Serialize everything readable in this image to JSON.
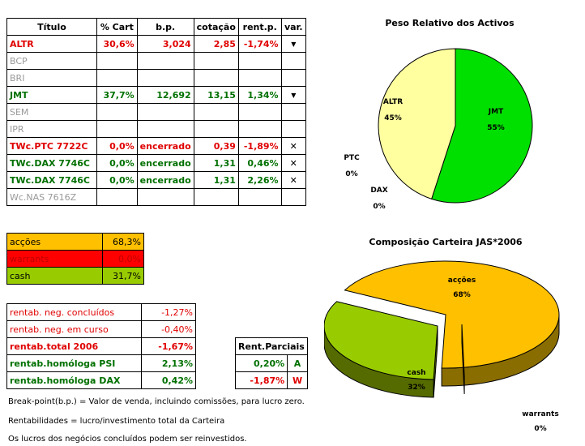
{
  "main_table": {
    "headers": [
      "Título",
      "% Cart",
      "b.p.",
      "cotação",
      "rent.p.",
      "var."
    ],
    "rows": [
      {
        "title": "ALTR",
        "cart": "30,6%",
        "bp": "3,024",
        "cot": "2,85",
        "rent": "-1,74%",
        "var": "▼",
        "color": "red",
        "var_kind": "arrow"
      },
      {
        "title": "BCP",
        "cart": "",
        "bp": "",
        "cot": "",
        "rent": "",
        "var": "",
        "color": "gray",
        "var_kind": "none"
      },
      {
        "title": "BRI",
        "cart": "",
        "bp": "",
        "cot": "",
        "rent": "",
        "var": "",
        "color": "gray",
        "var_kind": "none"
      },
      {
        "title": "JMT",
        "cart": "37,7%",
        "bp": "12,692",
        "cot": "13,15",
        "rent": "1,34%",
        "var": "▼",
        "color": "green",
        "var_kind": "arrow"
      },
      {
        "title": "SEM",
        "cart": "",
        "bp": "",
        "cot": "",
        "rent": "",
        "var": "",
        "color": "gray",
        "var_kind": "none"
      },
      {
        "title": "IPR",
        "cart": "",
        "bp": "",
        "cot": "",
        "rent": "",
        "var": "",
        "color": "gray",
        "var_kind": "none"
      },
      {
        "title": "TWc.PTC 7722C",
        "cart": "0,0%",
        "bp": "encerrado",
        "cot": "0,39",
        "rent": "-1,89%",
        "var": "✕",
        "color": "red",
        "var_kind": "x"
      },
      {
        "title": "TWc.DAX 7746C",
        "cart": "0,0%",
        "bp": "encerrado",
        "cot": "1,31",
        "rent": "0,46%",
        "var": "✕",
        "color": "green",
        "var_kind": "x"
      },
      {
        "title": "TWc.DAX 7746C",
        "cart": "0,0%",
        "bp": "encerrado",
        "cot": "1,31",
        "rent": "2,26%",
        "var": "✕",
        "color": "green",
        "var_kind": "x"
      },
      {
        "title": "Wc.NAS 7616Z",
        "cart": "",
        "bp": "",
        "cot": "",
        "rent": "",
        "var": "",
        "color": "gray",
        "var_kind": "none"
      }
    ]
  },
  "composition_table": {
    "rows": [
      {
        "label": "acções",
        "value": "68,3%",
        "bg": "#ffc000",
        "fg": "#000000"
      },
      {
        "label": "warrants",
        "value": "0,0%",
        "bg": "#ff0000",
        "fg": "#c00000"
      },
      {
        "label": "cash",
        "value": "31,7%",
        "bg": "#99cc00",
        "fg": "#000000"
      }
    ]
  },
  "rentab_table": {
    "rows": [
      {
        "label": "rentab. neg. concluídos",
        "value": "-1,27%",
        "color": "red",
        "bold": false
      },
      {
        "label": "rentab. neg. em curso",
        "value": "-0,40%",
        "color": "red",
        "bold": false
      },
      {
        "label": "rentab.total 2006",
        "value": "-1,67%",
        "color": "red",
        "bold": true
      },
      {
        "label": "rentab.homóloga PSI",
        "value": "2,13%",
        "color": "green",
        "bold": true
      },
      {
        "label": "rentab.homóloga DAX",
        "value": "0,42%",
        "color": "green",
        "bold": true
      }
    ]
  },
  "partial_table": {
    "header": "Rent.Parciais",
    "rows": [
      {
        "value": "0,20%",
        "letter": "A",
        "color": "green"
      },
      {
        "value": "-1,87%",
        "letter": "W",
        "color": "red"
      }
    ]
  },
  "notes": [
    "Break-point(b.p.) = Valor de venda, incluindo comissões, para lucro zero.",
    "Rentabilidades = lucro/investimento total da Carteira",
    "Os lucros dos negócios concluídos podem ser reinvestidos."
  ],
  "chart_data": [
    {
      "type": "pie",
      "title": "Peso Relativo dos Activos",
      "slices": [
        {
          "label": "JMT",
          "value": 55,
          "display": "55%",
          "color": "#00e000"
        },
        {
          "label": "ALTR",
          "value": 45,
          "display": "45%",
          "color": "#ffffa0"
        },
        {
          "label": "PTC",
          "value": 0,
          "display": "0%",
          "color": "#ff0000"
        },
        {
          "label": "DAX",
          "value": 0,
          "display": "0%",
          "color": "#0000ff"
        }
      ]
    },
    {
      "type": "pie",
      "title": "Composição Carteira JAS*2006",
      "slices": [
        {
          "label": "acções",
          "value": 68,
          "display": "68%",
          "color": "#ffc000"
        },
        {
          "label": "cash",
          "value": 32,
          "display": "32%",
          "color": "#99cc00"
        },
        {
          "label": "warrants",
          "value": 0,
          "display": "0%",
          "color": "#ff0000"
        }
      ]
    }
  ]
}
